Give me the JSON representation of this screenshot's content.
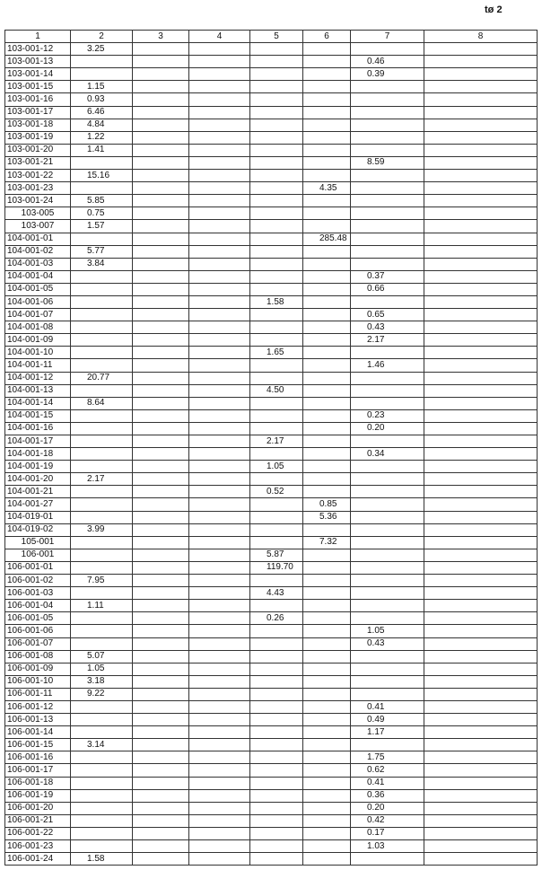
{
  "page_label": "tø 2",
  "columns": [
    "1",
    "2",
    "3",
    "4",
    "5",
    "6",
    "7",
    "8"
  ],
  "rows": [
    [
      "103-001-12",
      "3.25",
      "",
      "",
      "",
      "",
      "",
      ""
    ],
    [
      "103-001-13",
      "",
      "",
      "",
      "",
      "",
      "0.46",
      ""
    ],
    [
      "103-001-14",
      "",
      "",
      "",
      "",
      "",
      "0.39",
      ""
    ],
    [
      "103-001-15",
      "1.15",
      "",
      "",
      "",
      "",
      "",
      ""
    ],
    [
      "103-001-16",
      "0.93",
      "",
      "",
      "",
      "",
      "",
      ""
    ],
    [
      "103-001-17",
      "6.46",
      "",
      "",
      "",
      "",
      "",
      ""
    ],
    [
      "103-001-18",
      "4.84",
      "",
      "",
      "",
      "",
      "",
      ""
    ],
    [
      "103-001-19",
      "1.22",
      "",
      "",
      "",
      "",
      "",
      ""
    ],
    [
      "103-001-20",
      "1.41",
      "",
      "",
      "",
      "",
      "",
      ""
    ],
    [
      "103-001-21",
      "",
      "",
      "",
      "",
      "",
      "8.59",
      ""
    ],
    [
      "103-001-22",
      "15.16",
      "",
      "",
      "",
      "",
      "",
      ""
    ],
    [
      "103-001-23",
      "",
      "",
      "",
      "",
      "4.35",
      "",
      ""
    ],
    [
      "103-001-24",
      "5.85",
      "",
      "",
      "",
      "",
      "",
      ""
    ],
    [
      "103-005",
      "0.75",
      "",
      "",
      "",
      "",
      "",
      ""
    ],
    [
      "103-007",
      "1.57",
      "",
      "",
      "",
      "",
      "",
      ""
    ],
    [
      "104-001-01",
      "",
      "",
      "",
      "",
      "285.48",
      "",
      ""
    ],
    [
      "104-001-02",
      "5.77",
      "",
      "",
      "",
      "",
      "",
      ""
    ],
    [
      "104-001-03",
      "3.84",
      "",
      "",
      "",
      "",
      "",
      ""
    ],
    [
      "104-001-04",
      "",
      "",
      "",
      "",
      "",
      "0.37",
      ""
    ],
    [
      "104-001-05",
      "",
      "",
      "",
      "",
      "",
      "0.66",
      ""
    ],
    [
      "104-001-06",
      "",
      "",
      "",
      "1.58",
      "",
      "",
      ""
    ],
    [
      "104-001-07",
      "",
      "",
      "",
      "",
      "",
      "0.65",
      ""
    ],
    [
      "104-001-08",
      "",
      "",
      "",
      "",
      "",
      "0.43",
      ""
    ],
    [
      "104-001-09",
      "",
      "",
      "",
      "",
      "",
      "2.17",
      ""
    ],
    [
      "104-001-10",
      "",
      "",
      "",
      "1.65",
      "",
      "",
      ""
    ],
    [
      "104-001-11",
      "",
      "",
      "",
      "",
      "",
      "1.46",
      ""
    ],
    [
      "104-001-12",
      "20.77",
      "",
      "",
      "",
      "",
      "",
      ""
    ],
    [
      "104-001-13",
      "",
      "",
      "",
      "4.50",
      "",
      "",
      ""
    ],
    [
      "104-001-14",
      "8.64",
      "",
      "",
      "",
      "",
      "",
      ""
    ],
    [
      "104-001-15",
      "",
      "",
      "",
      "",
      "",
      "0.23",
      ""
    ],
    [
      "104-001-16",
      "",
      "",
      "",
      "",
      "",
      "0.20",
      ""
    ],
    [
      "104-001-17",
      "",
      "",
      "",
      "2.17",
      "",
      "",
      ""
    ],
    [
      "104-001-18",
      "",
      "",
      "",
      "",
      "",
      "0.34",
      ""
    ],
    [
      "104-001-19",
      "",
      "",
      "",
      "1.05",
      "",
      "",
      ""
    ],
    [
      "104-001-20",
      "2.17",
      "",
      "",
      "",
      "",
      "",
      ""
    ],
    [
      "104-001-21",
      "",
      "",
      "",
      "0.52",
      "",
      "",
      ""
    ],
    [
      "104-001-27",
      "",
      "",
      "",
      "",
      "0.85",
      "",
      ""
    ],
    [
      "104-019-01",
      "",
      "",
      "",
      "",
      "5.36",
      "",
      ""
    ],
    [
      "104-019-02",
      "3.99",
      "",
      "",
      "",
      "",
      "",
      ""
    ],
    [
      "105-001",
      "",
      "",
      "",
      "",
      "7.32",
      "",
      ""
    ],
    [
      "106-001",
      "",
      "",
      "",
      "5.87",
      "",
      "",
      ""
    ],
    [
      "106-001-01",
      "",
      "",
      "",
      "119.70",
      "",
      "",
      ""
    ],
    [
      "106-001-02",
      "7.95",
      "",
      "",
      "",
      "",
      "",
      ""
    ],
    [
      "106-001-03",
      "",
      "",
      "",
      "4.43",
      "",
      "",
      ""
    ],
    [
      "106-001-04",
      "1.11",
      "",
      "",
      "",
      "",
      "",
      ""
    ],
    [
      "106-001-05",
      "",
      "",
      "",
      "0.26",
      "",
      "",
      ""
    ],
    [
      "106-001-06",
      "",
      "",
      "",
      "",
      "",
      "1.05",
      ""
    ],
    [
      "106-001-07",
      "",
      "",
      "",
      "",
      "",
      "0.43",
      ""
    ],
    [
      "106-001-08",
      "5.07",
      "",
      "",
      "",
      "",
      "",
      ""
    ],
    [
      "106-001-09",
      "1.05",
      "",
      "",
      "",
      "",
      "",
      ""
    ],
    [
      "106-001-10",
      "3.18",
      "",
      "",
      "",
      "",
      "",
      ""
    ],
    [
      "106-001-11",
      "9.22",
      "",
      "",
      "",
      "",
      "",
      ""
    ],
    [
      "106-001-12",
      "",
      "",
      "",
      "",
      "",
      "0.41",
      ""
    ],
    [
      "106-001-13",
      "",
      "",
      "",
      "",
      "",
      "0.49",
      ""
    ],
    [
      "106-001-14",
      "",
      "",
      "",
      "",
      "",
      "1.17",
      ""
    ],
    [
      "106-001-15",
      "3.14",
      "",
      "",
      "",
      "",
      "",
      ""
    ],
    [
      "106-001-16",
      "",
      "",
      "",
      "",
      "",
      "1.75",
      ""
    ],
    [
      "106-001-17",
      "",
      "",
      "",
      "",
      "",
      "0.62",
      ""
    ],
    [
      "106-001-18",
      "",
      "",
      "",
      "",
      "",
      "0.41",
      ""
    ],
    [
      "106-001-19",
      "",
      "",
      "",
      "",
      "",
      "0.36",
      ""
    ],
    [
      "106-001-20",
      "",
      "",
      "",
      "",
      "",
      "0.20",
      ""
    ],
    [
      "106-001-21",
      "",
      "",
      "",
      "",
      "",
      "0.42",
      ""
    ],
    [
      "106-001-22",
      "",
      "",
      "",
      "",
      "",
      "0.17",
      ""
    ],
    [
      "106-001-23",
      "",
      "",
      "",
      "",
      "",
      "1.03",
      ""
    ],
    [
      "106-001-24",
      "1.58",
      "",
      "",
      "",
      "",
      "",
      ""
    ]
  ]
}
